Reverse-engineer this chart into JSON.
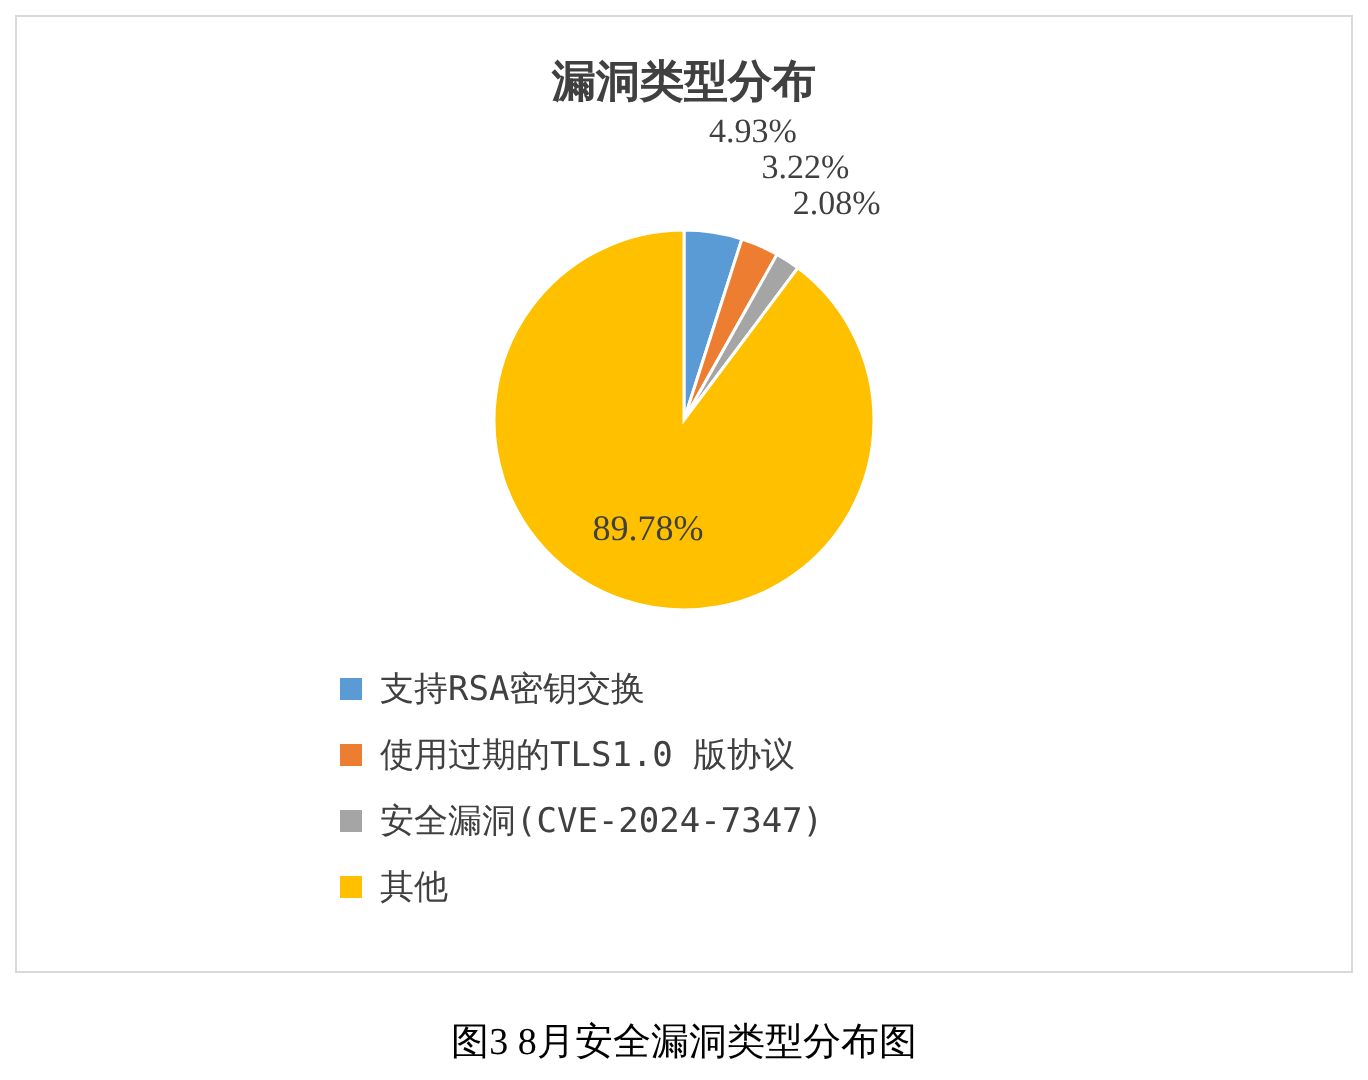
{
  "chart_data": {
    "type": "pie",
    "title": "漏洞类型分布",
    "categories": [
      "支持RSA密钥交换",
      "使用过期的TLS1.0 版协议",
      "安全漏洞(CVE-2024-7347)",
      "其他"
    ],
    "values": [
      4.93,
      3.22,
      2.08,
      89.78
    ],
    "value_labels": [
      "4.93%",
      "3.22%",
      "2.08%",
      "89.78%"
    ],
    "colors": [
      "#5b9bd5",
      "#ed7d31",
      "#a5a5a5",
      "#ffc000"
    ],
    "legend": "bottom",
    "annotations": [
      "图3  8月安全漏洞类型分布图"
    ]
  }
}
